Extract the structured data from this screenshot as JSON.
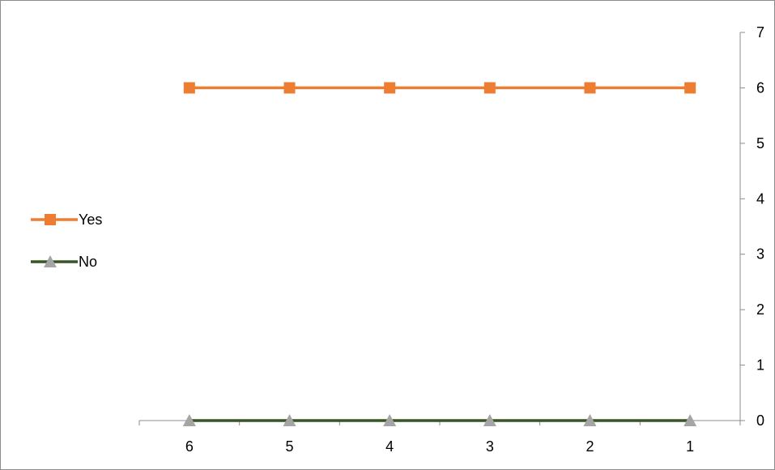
{
  "chart_data": {
    "type": "line",
    "categories": [
      "6",
      "5",
      "4",
      "3",
      "2",
      "1"
    ],
    "series": [
      {
        "name": "Yes",
        "values": [
          6,
          6,
          6,
          6,
          6,
          6
        ],
        "color": "#ED7D31",
        "line_color": "#ED7D31",
        "marker": "square",
        "marker_color": "#ED7D31"
      },
      {
        "name": "No",
        "values": [
          0,
          0,
          0,
          0,
          0,
          0
        ],
        "color": "#375623",
        "line_color": "#375623",
        "marker": "triangle",
        "marker_color": "#A5A5A5"
      }
    ],
    "y_ticks": [
      "0",
      "1",
      "2",
      "3",
      "4",
      "5",
      "6",
      "7"
    ],
    "ylim": [
      0,
      7
    ],
    "y_axis_position": "right",
    "legend_position": "left",
    "grid": false,
    "title": "",
    "xlabel": "",
    "ylabel": ""
  }
}
